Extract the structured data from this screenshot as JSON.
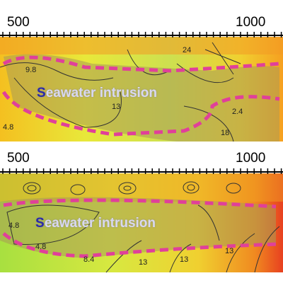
{
  "panels": [
    {
      "axis_labels": [
        500,
        1000
      ],
      "annotation": "Seawater intrusion",
      "contour_labels": [
        9.8,
        13,
        24,
        2.4,
        18,
        4.8
      ]
    },
    {
      "axis_labels": [
        500,
        1000
      ],
      "annotation": "Seawater intrusion",
      "contour_labels": [
        4.8,
        4.8,
        8.4,
        13,
        13,
        13
      ]
    }
  ]
}
